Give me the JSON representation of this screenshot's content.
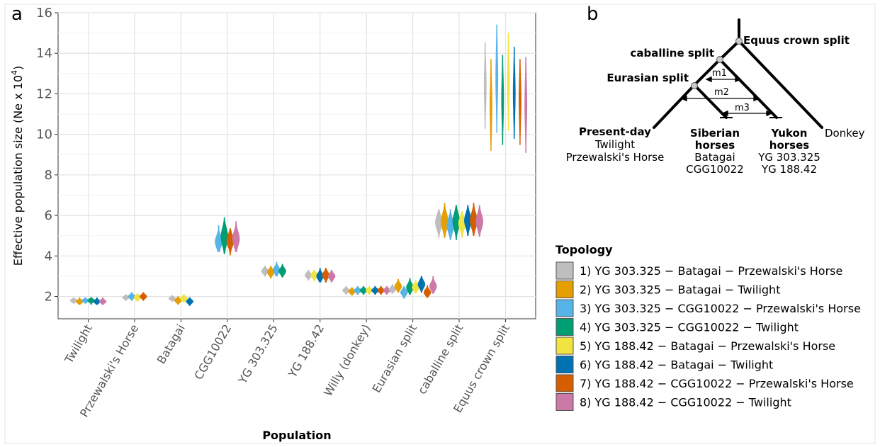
{
  "panel_a": {
    "letter": "a"
  },
  "panel_b": {
    "letter": "b"
  },
  "chart_data": {
    "type": "violin",
    "xlabel": "Population",
    "ylabel_parts": {
      "main": "Effective population size (Ne x 10",
      "sup": "4",
      "end": ")"
    },
    "ylim": [
      0.9,
      16
    ],
    "yticks": [
      2,
      4,
      6,
      8,
      10,
      12,
      14,
      16
    ],
    "grid": true,
    "categories": [
      "Twilight",
      "Przewalski's Horse",
      "Batagai",
      "CGG10022",
      "YG 303.325",
      "YG 188.42",
      "Willy (donkey)",
      "Eurasian split",
      "caballine split",
      "Equus crown split"
    ],
    "series": [
      {
        "name": "1) YG 303.325 − Batagai − Przewalski's Horse",
        "color": "#BEBEBE",
        "values": [
          1.8,
          1.95,
          1.9,
          null,
          3.25,
          3.05,
          2.3,
          2.35,
          5.65,
          12.4
        ],
        "ranges": [
          [
            1.65,
            1.95
          ],
          [
            1.8,
            2.1
          ],
          [
            1.75,
            2.05
          ],
          null,
          [
            3.0,
            3.5
          ],
          [
            2.8,
            3.3
          ],
          [
            2.1,
            2.5
          ],
          [
            2.15,
            2.6
          ],
          [
            4.9,
            6.3
          ],
          [
            10.3,
            14.5
          ]
        ]
      },
      {
        "name": "2) YG 303.325 − Batagai − Twilight",
        "color": "#E69F00",
        "values": [
          1.75,
          null,
          1.8,
          null,
          3.2,
          null,
          2.25,
          2.5,
          5.7,
          11.4
        ],
        "ranges": [
          [
            1.6,
            1.95
          ],
          null,
          [
            1.6,
            2.0
          ],
          null,
          [
            2.9,
            3.5
          ],
          null,
          [
            2.05,
            2.45
          ],
          [
            2.2,
            2.85
          ],
          [
            4.9,
            6.6
          ],
          [
            9.2,
            13.7
          ]
        ]
      },
      {
        "name": "3) YG 303.325 − CGG10022 − Przewalski's Horse",
        "color": "#56B4E9",
        "values": [
          1.8,
          2.0,
          null,
          4.7,
          3.3,
          null,
          2.3,
          2.2,
          5.5,
          12.8
        ],
        "ranges": [
          [
            1.65,
            1.95
          ],
          [
            1.8,
            2.2
          ],
          null,
          [
            4.2,
            5.5
          ],
          [
            3.0,
            3.7
          ],
          null,
          [
            2.1,
            2.5
          ],
          [
            1.9,
            2.5
          ],
          [
            4.8,
            6.3
          ],
          [
            10.1,
            15.4
          ]
        ]
      },
      {
        "name": "4) YG 303.325 − CGG10022 − Twilight",
        "color": "#009E73",
        "values": [
          1.8,
          null,
          null,
          4.95,
          3.25,
          null,
          2.3,
          2.45,
          5.7,
          11.7
        ],
        "ranges": [
          [
            1.6,
            1.95
          ],
          null,
          null,
          [
            4.1,
            5.9
          ],
          [
            2.95,
            3.6
          ],
          null,
          [
            2.1,
            2.5
          ],
          [
            2.1,
            2.9
          ],
          [
            4.8,
            6.5
          ],
          [
            9.5,
            13.9
          ]
        ]
      },
      {
        "name": "5) YG 188.42 − Batagai − Przewalski's Horse",
        "color": "#F0E442",
        "values": [
          null,
          1.95,
          1.9,
          null,
          null,
          3.05,
          2.3,
          2.45,
          5.6,
          12.6
        ],
        "ranges": [
          null,
          [
            1.75,
            2.15
          ],
          [
            1.7,
            2.1
          ],
          null,
          null,
          [
            2.75,
            3.3
          ],
          [
            2.1,
            2.5
          ],
          [
            2.15,
            2.8
          ],
          [
            4.9,
            6.2
          ],
          [
            10.2,
            15.0
          ]
        ]
      },
      {
        "name": "6) YG 188.42 − Batagai − Twilight",
        "color": "#0072B2",
        "values": [
          1.75,
          null,
          1.75,
          null,
          null,
          3.0,
          2.3,
          2.6,
          5.75,
          12.0
        ],
        "ranges": [
          [
            1.6,
            1.95
          ],
          null,
          [
            1.55,
            1.95
          ],
          null,
          null,
          [
            2.7,
            3.4
          ],
          [
            2.1,
            2.5
          ],
          [
            2.2,
            3.0
          ],
          [
            5.0,
            6.5
          ],
          [
            9.8,
            14.3
          ]
        ]
      },
      {
        "name": "7) YG 188.42 − CGG10022 − Przewalski's Horse",
        "color": "#D55E00",
        "values": [
          null,
          2.0,
          null,
          4.75,
          null,
          3.05,
          2.3,
          2.2,
          5.75,
          11.7
        ],
        "ranges": [
          null,
          [
            1.8,
            2.2
          ],
          null,
          [
            4.05,
            5.35
          ],
          null,
          [
            2.7,
            3.4
          ],
          [
            2.1,
            2.5
          ],
          [
            1.95,
            2.55
          ],
          [
            5.0,
            6.6
          ],
          [
            9.5,
            13.7
          ]
        ]
      },
      {
        "name": "8) YG 188.42 − CGG10022 − Twilight",
        "color": "#CC79A7",
        "values": [
          1.75,
          null,
          null,
          4.85,
          null,
          3.0,
          2.3,
          2.5,
          5.7,
          11.5
        ],
        "ranges": [
          [
            1.6,
            1.95
          ],
          null,
          null,
          [
            4.2,
            5.7
          ],
          null,
          [
            2.7,
            3.3
          ],
          [
            2.1,
            2.5
          ],
          [
            2.15,
            3.0
          ],
          [
            4.95,
            6.5
          ],
          [
            9.1,
            13.8
          ]
        ]
      }
    ]
  },
  "legend": {
    "title": "Topology"
  },
  "tree": {
    "labels": {
      "crown": "Equus crown split",
      "caballine": "caballine split",
      "eurasian": "Eurasian split",
      "m1": "m1",
      "m2": "m2",
      "m3": "m3",
      "present_head": "Present-day",
      "present_1": "Twilight",
      "present_2": "Przewalski's Horse",
      "siberian_head_1": "Siberian",
      "siberian_head_2": "horses",
      "siberian_1": "Batagai",
      "siberian_2": "CGG10022",
      "yukon_head_1": "Yukon",
      "yukon_head_2": "horses",
      "yukon_1": "YG 303.325",
      "yukon_2": "YG 188.42",
      "donkey": "Donkey"
    }
  }
}
